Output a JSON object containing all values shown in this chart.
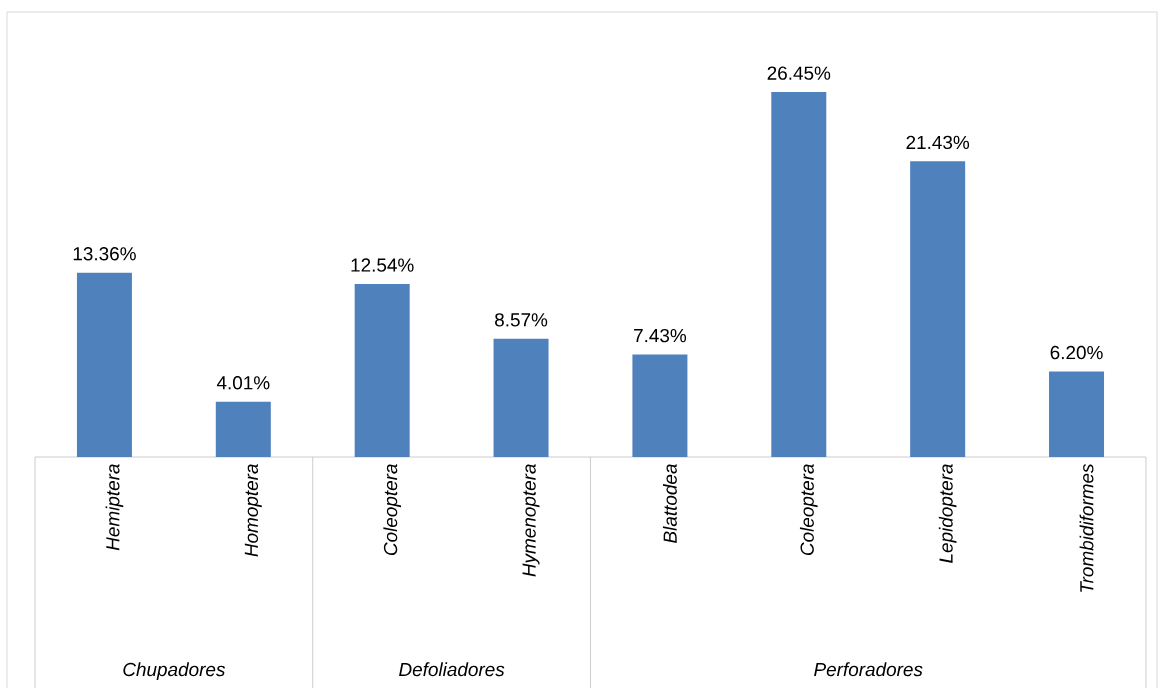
{
  "chart_data": {
    "type": "bar",
    "categories": [
      "Hemiptera",
      "Homoptera",
      "Coleoptera",
      "Hymenoptera",
      "Blattodea",
      "Coleoptera",
      "Lepidoptera",
      "Trombidiformes"
    ],
    "values": [
      13.36,
      4.01,
      12.54,
      8.57,
      7.43,
      26.45,
      21.43,
      6.2
    ],
    "value_labels": [
      "13.36%",
      "4.01%",
      "12.54%",
      "8.57%",
      "7.43%",
      "26.45%",
      "21.43%",
      "6.20%"
    ],
    "color": "#4f81bd",
    "annotations": [
      "Chupadores",
      "Defoliadores",
      "Perforadores"
    ]
  }
}
